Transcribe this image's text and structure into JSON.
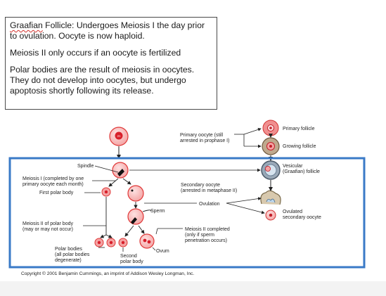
{
  "notes": {
    "line1_term": "Graafian",
    "line1_rest": " Follicle: Undergoes Meiosis I the day prior to ovulation. Oocyte is now haploid.",
    "line2": "Meiosis II only occurs if an oocyte is fertilized",
    "line3": "Polar bodies are the result of meiosis in oocytes. They do not develop into oocytes, but undergo apoptosis shortly following its release."
  },
  "diagram": {
    "cell_label": "2n",
    "labels": {
      "primary_follicle": "Primary follicle",
      "growing_follicle": "Growing follicle",
      "primary_oocyte_1": "Primary oocyte (still",
      "primary_oocyte_2": "arrested in prophase I)",
      "spindle": "Spindle",
      "vesicular_1": "Vesicular",
      "vesicular_2": "(Graafian) follicle",
      "meiosis1_1": "Meiosis I (completed by one",
      "meiosis1_2": "primary oocyte each month)",
      "first_polar": "First polar body",
      "secondary_oocyte_1": "Secondary oocyte",
      "secondary_oocyte_2": "(arrested in metaphase II)",
      "ovulation": "Ovulation",
      "sperm": "Sperm",
      "ovulated_1": "Ovulated",
      "ovulated_2": "secondary oocyte",
      "meiosis2_1": "Meiosis II of polar body",
      "meiosis2_2": "(may or may not occur)",
      "meiosis2_done_1": "Meiosis II completed",
      "meiosis2_done_2": "(only if sperm",
      "meiosis2_done_3": "penetration occurs)",
      "ovum": "Ovum",
      "polar_bodies_1": "Polar bodies",
      "polar_bodies_2": "(all polar bodies",
      "polar_bodies_3": "degenerate)",
      "second_polar_1": "Second",
      "second_polar_2": "polar body"
    },
    "copyright": "Copyright © 2001 Benjamin Cummings, an imprint of Addison Wesley Longman, Inc.",
    "colors": {
      "highlight_border": "#3a7ac7",
      "cell_fill": "#f6b0b0",
      "cell_stroke": "#e03838",
      "nucleus": "#d81f2a"
    }
  }
}
